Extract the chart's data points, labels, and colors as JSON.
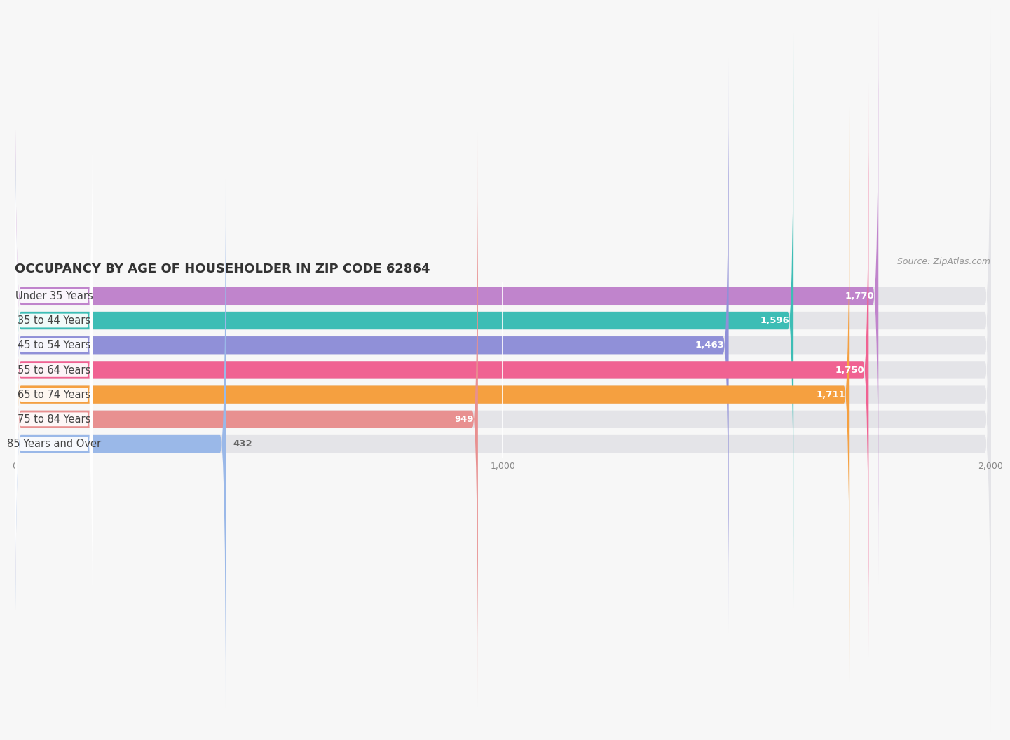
{
  "title": "OCCUPANCY BY AGE OF HOUSEHOLDER IN ZIP CODE 62864",
  "source": "Source: ZipAtlas.com",
  "categories": [
    "Under 35 Years",
    "35 to 44 Years",
    "45 to 54 Years",
    "55 to 64 Years",
    "65 to 74 Years",
    "75 to 84 Years",
    "85 Years and Over"
  ],
  "values": [
    1770,
    1596,
    1463,
    1750,
    1711,
    949,
    432
  ],
  "bar_colors": [
    "#c084cc",
    "#3dbdb5",
    "#9090d8",
    "#f06292",
    "#f5a040",
    "#e89090",
    "#9ab8e8"
  ],
  "track_color": "#e4e4e8",
  "track_right_color": "#f0f0f0",
  "background_color": "#f7f7f7",
  "white_color": "#ffffff",
  "xlim_max": 2000,
  "xticks": [
    0,
    1000,
    2000
  ],
  "title_fontsize": 13,
  "title_color": "#333333",
  "label_fontsize": 10.5,
  "value_fontsize": 9.5,
  "source_fontsize": 9
}
